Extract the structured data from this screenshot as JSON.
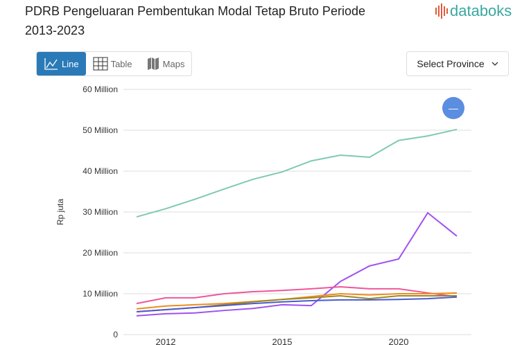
{
  "header": {
    "title": "PDRB Pengeluaran Pembentukan Modal Tetap Bruto Periode 2013-2023",
    "logo_text": "databoks"
  },
  "tabs": [
    {
      "label": "Line",
      "icon": "line-chart-icon",
      "active": true
    },
    {
      "label": "Table",
      "icon": "table-grid-icon"
    },
    {
      "label": "Maps",
      "icon": "map-icon"
    }
  ],
  "province_select": {
    "label": "Select Province"
  },
  "fab": {
    "label": "—"
  },
  "chart_data": {
    "type": "line",
    "title": "",
    "xlabel": "",
    "ylabel": "Rp juta",
    "ylim": [
      0,
      60000000
    ],
    "y_ticks": [
      "0",
      "10 Million",
      "20 Million",
      "30 Million",
      "40 Million",
      "50 Million",
      "60 Million"
    ],
    "x_tick_labels": [
      {
        "index": 1,
        "label": "2012"
      },
      {
        "index": 5,
        "label": "2015"
      },
      {
        "index": 9,
        "label": "2020"
      }
    ],
    "points_per_series": 12,
    "grid": true,
    "series": [
      {
        "color": "#7ec9b5",
        "values": [
          28.8,
          30.8,
          33.1,
          35.6,
          38.0,
          39.8,
          42.5,
          43.9,
          43.4,
          47.5,
          48.6,
          50.2
        ]
      },
      {
        "color": "#a050f0",
        "values": [
          4.6,
          5.1,
          5.3,
          5.9,
          6.4,
          7.3,
          7.1,
          13.0,
          16.8,
          18.5,
          29.8,
          24.1
        ]
      },
      {
        "color": "#f0559a",
        "values": [
          7.6,
          9.0,
          9.0,
          10.0,
          10.5,
          10.8,
          11.2,
          11.7,
          11.2,
          11.2,
          10.2,
          9.3
        ]
      },
      {
        "color": "#f08a20",
        "values": [
          6.3,
          7.0,
          7.3,
          7.6,
          8.1,
          8.6,
          9.3,
          10.0,
          9.7,
          10.0,
          10.0,
          10.2
        ]
      },
      {
        "color": "#9a8a20",
        "values": [
          5.6,
          6.1,
          6.6,
          7.3,
          8.0,
          8.6,
          9.0,
          9.5,
          8.8,
          9.5,
          9.5,
          9.5
        ]
      },
      {
        "color": "#4a5ad0",
        "values": [
          5.6,
          6.1,
          6.6,
          7.1,
          7.6,
          8.0,
          8.3,
          8.5,
          8.5,
          8.6,
          8.8,
          9.2
        ]
      }
    ],
    "value_unit": "million Rp juta"
  }
}
